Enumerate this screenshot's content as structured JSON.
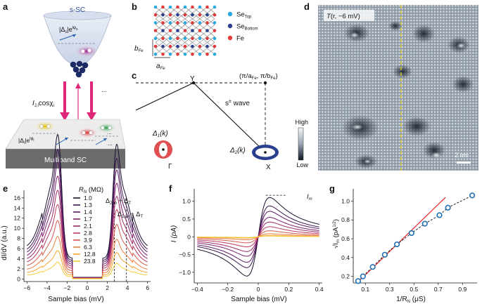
{
  "panel_labels": {
    "a": "a",
    "b": "b",
    "c": "c",
    "d": "d",
    "e": "e",
    "f": "f",
    "g": "g"
  },
  "colors": {
    "sc_slab": "#6b6b6b",
    "sc_top": "#ececec",
    "tip_fill": "#dde4f0",
    "tip_ball": "#1c2a66",
    "pink_arrow": "#e0287a",
    "blue_arrow": "#2563b0",
    "se_top": "#2aa9e0",
    "se_bottom": "#2b3f8f",
    "fe": "#e03a3a",
    "gap1": "#e05050",
    "gap2": "#2b3f8f",
    "fit_line": "#e02020",
    "g_marker": "#1f6fb3"
  },
  "panel_a": {
    "tip_title": "s-SC",
    "tip_gap": "|Δ",
    "tip_gap_sub": "s",
    "tip_gap_tail": "|e",
    "tip_phase_sup": "iφ",
    "tip_phase_sub": "s",
    "current_I": "I",
    "current_sub": "J,i",
    "current_cos": "cosχ",
    "current_cos_sub": "i",
    "band_gap": "|Δ",
    "band_gap_sub": "i",
    "band_gap_tail": "|e",
    "band_phase_sup": "iφ",
    "band_phase_sub": "i",
    "ellipsis_1": "...",
    "ellipsis_2": "...",
    "ellipsis_3": "...",
    "substrate_label": "Multiband SC"
  },
  "panel_b": {
    "legend": [
      {
        "label": "Se",
        "sub": "Top",
        "color": "#2aa9e0"
      },
      {
        "label": "Se",
        "sub": "Bottom",
        "color": "#2b3f8f"
      },
      {
        "label": "Fe",
        "sub": "",
        "color": "#e03a3a"
      }
    ],
    "b_label": "b",
    "b_sub": "Fe",
    "a_label": "a",
    "a_sub": "Fe"
  },
  "panel_c": {
    "corner_label": "(π/a",
    "corner_sub1": "Fe",
    "corner_mid": ", π/b",
    "corner_sub2": "Fe",
    "corner_tail": ")",
    "y_label": "Y",
    "x_label": "X",
    "gamma_label": "Γ",
    "wave_label": "s",
    "wave_sup": "±",
    "wave_tail": " wave",
    "delta1": "Δ",
    "delta1_sub": "1",
    "delta1_tail": "(k)",
    "delta2": "Δ",
    "delta2_sub": "2",
    "delta2_tail": "(k)"
  },
  "panel_d": {
    "title_T": "T",
    "title_rest": "(r, −6 mV)",
    "scale_high": "High",
    "scale_low": "Low",
    "scalebar": "2 nm"
  },
  "panel_e": {
    "ylabel": "dI/dV (a.u.)",
    "xlabel": "Sample bias (mV)",
    "xticks": [
      "−6",
      "−4",
      "−2",
      "0",
      "2",
      "4",
      "6"
    ],
    "yticks": [
      "0",
      "2",
      "4",
      "6",
      "8",
      "10",
      "12",
      "14",
      "16"
    ],
    "legend_title": "R",
    "legend_title_sub": "N",
    "legend_title_unit": " (MΩ)",
    "annot_2": "Δ",
    "annot_2_sub": "2,m",
    "annot_2_tail": " + Δ",
    "annot_2_tail_sub": "T",
    "annot_1": "Δ",
    "annot_1_sub": "1,m",
    "annot_1_tail": " + Δ",
    "annot_1_tail_sub": "T"
  },
  "panel_f": {
    "ylabel": "I (pA)",
    "xlabel": "Sample bias (mV)",
    "xticks": [
      "−0.4",
      "−0.2",
      "0",
      "0.2",
      "0.4"
    ],
    "yticks": [
      "−1.0",
      "−0.5",
      "0",
      "0.5",
      "1.0"
    ],
    "annot": "I",
    "annot_sub": "m"
  },
  "panel_g": {
    "ylabel": "√I",
    "ylabel_sub": "m",
    "ylabel_unit": " (pA",
    "ylabel_sup": "1/2",
    "ylabel_close": ")",
    "xlabel": "1/R",
    "xlabel_sub": "N",
    "xlabel_unit": " (μS)",
    "xticks": [
      "0.1",
      "0.3",
      "0.5",
      "0.7",
      "0.9"
    ],
    "yticks": [
      "0.2",
      "0.4",
      "0.6",
      "0.8",
      "1.0"
    ]
  },
  "chart_data": [
    {
      "type": "line",
      "panel": "e",
      "xlabel": "Sample bias (mV)",
      "ylabel": "dI/dV (a.u.)",
      "xlim": [
        -6.3,
        6.3
      ],
      "ylim": [
        -0.5,
        17.5
      ],
      "grid": false,
      "legend_position": "top-center",
      "series": [
        {
          "name": "1.0",
          "color": "#1a0f2e",
          "peak": 16.3
        },
        {
          "name": "1.3",
          "color": "#3b1650",
          "peak": 14.6
        },
        {
          "name": "1.4",
          "color": "#5a1a63",
          "peak": 13.2
        },
        {
          "name": "1.7",
          "color": "#7a1f6e",
          "peak": 11.6
        },
        {
          "name": "2.1",
          "color": "#9b2868",
          "peak": 10.0
        },
        {
          "name": "2.8",
          "color": "#bb3a5e",
          "peak": 8.4
        },
        {
          "name": "3.9",
          "color": "#d6574e",
          "peak": 6.6
        },
        {
          "name": "6.3",
          "color": "#ea7c3c",
          "peak": 4.8
        },
        {
          "name": "12.8",
          "color": "#f4a531",
          "peak": 3.2
        },
        {
          "name": "23.8",
          "color": "#f2cd3b",
          "peak": 1.9
        }
      ],
      "vlines": [
        2.7,
        3.9
      ]
    },
    {
      "type": "line",
      "panel": "f",
      "xlabel": "Sample bias (mV)",
      "ylabel": "I (pA)",
      "xlim": [
        -0.42,
        0.42
      ],
      "ylim": [
        -1.3,
        1.35
      ],
      "grid": false,
      "series": [
        {
          "name": "1.0",
          "color": "#1a0f2e",
          "amplitude": 1.17
        },
        {
          "name": "1.3",
          "color": "#3b1650",
          "amplitude": 0.92
        },
        {
          "name": "1.4",
          "color": "#5a1a63",
          "amplitude": 0.76
        },
        {
          "name": "1.7",
          "color": "#7a1f6e",
          "amplitude": 0.58
        },
        {
          "name": "2.1",
          "color": "#9b2868",
          "amplitude": 0.44
        },
        {
          "name": "2.8",
          "color": "#bb3a5e",
          "amplitude": 0.3
        },
        {
          "name": "3.9",
          "color": "#d6574e",
          "amplitude": 0.18
        },
        {
          "name": "6.3",
          "color": "#ea7c3c",
          "amplitude": 0.09
        },
        {
          "name": "12.8",
          "color": "#f4a531",
          "amplitude": 0.04
        },
        {
          "name": "23.8",
          "color": "#f2cd3b",
          "amplitude": 0.02
        }
      ]
    },
    {
      "type": "scatter",
      "panel": "g",
      "xlabel": "1/R_N (μS)",
      "ylabel": "√I_m (pA^1/2)",
      "xlim": [
        0.0,
        1.02
      ],
      "ylim": [
        0.13,
        1.13
      ],
      "grid": false,
      "x": [
        0.04,
        0.08,
        0.16,
        0.26,
        0.36,
        0.48,
        0.59,
        0.71,
        0.78,
        0.98
      ],
      "y": [
        0.15,
        0.2,
        0.3,
        0.43,
        0.54,
        0.66,
        0.76,
        0.85,
        0.93,
        1.06
      ],
      "fit_line": {
        "x": [
          0.04,
          0.76
        ],
        "y": [
          0.14,
          1.04
        ]
      }
    }
  ]
}
